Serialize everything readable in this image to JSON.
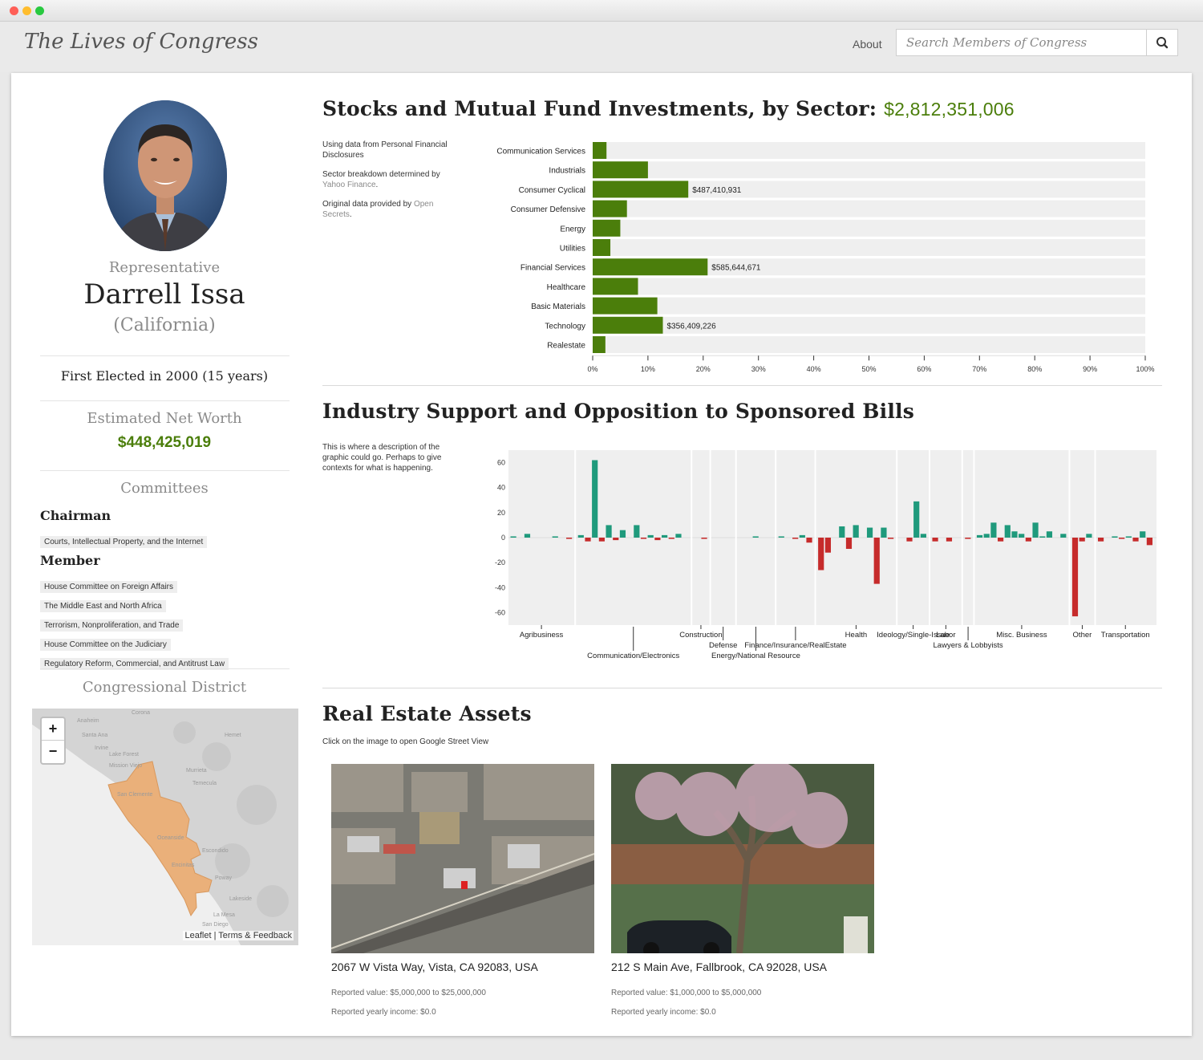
{
  "brand": "The Lives of Congress",
  "nav": {
    "about": "About"
  },
  "search": {
    "placeholder": "Search Members of Congress"
  },
  "profile": {
    "role": "Representative",
    "name": "Darrell Issa",
    "state": "(California)",
    "first_elected": "First Elected in 2000 (15 years)",
    "net_worth_label": "Estimated Net Worth",
    "net_worth": "$448,425,019"
  },
  "committees": {
    "title": "Committees",
    "chairman_label": "Chairman",
    "chairman": [
      "Courts, Intellectual Property, and the Internet"
    ],
    "member_label": "Member",
    "member": [
      "House Committee on Foreign Affairs",
      "The Middle East and North Africa",
      "Terrorism, Nonproliferation, and Trade",
      "House Committee on the Judiciary",
      "Regulatory Reform, Commercial, and Antitrust Law"
    ]
  },
  "district": {
    "title": "Congressional District",
    "zoom_in": "+",
    "zoom_out": "−",
    "attribution_leaflet": "Leaflet",
    "attribution_sep": " | ",
    "attribution_terms": "Terms & Feedback",
    "places": [
      "Corona",
      "Anaheim",
      "Santa Ana",
      "Irvine",
      "Lake Forest",
      "Mission Viejo",
      "Murrieta",
      "Temecula",
      "Hemet",
      "San Clemente",
      "Oceanside",
      "Escondido",
      "Encinitas",
      "Poway",
      "Lakeside",
      "La Mesa",
      "San Diego"
    ]
  },
  "stocks": {
    "title": "Stocks and Mutual Fund Investments, by Sector:",
    "total": "$2,812,351,006",
    "note1": "Using data from Personal Financial Disclosures",
    "note2_pre": "Sector breakdown determined by ",
    "note2_link": "Yahoo Finance",
    "note2_post": ".",
    "note3_pre": "Original data provided by ",
    "note3_link": "Open Secrets",
    "note3_post": "."
  },
  "industry": {
    "title": "Industry Support and Opposition to Sponsored Bills",
    "note": "This is where a description of the graphic could go. Perhaps to give contexts for what is happening."
  },
  "realestate": {
    "title": "Real Estate Assets",
    "note": "Click on the image to open Google Street View",
    "assets": [
      {
        "address": "2067 W Vista Way, Vista, CA 92083, USA",
        "value": "Reported value: $5,000,000 to $25,000,000",
        "income": "Reported yearly income: $0.0"
      },
      {
        "address": "212 S Main Ave, Fallbrook, CA 92028, USA",
        "value": "Reported value: $1,000,000 to $5,000,000",
        "income": "Reported yearly income: $0.0"
      }
    ]
  },
  "colors": {
    "accent": "#4b7e0b",
    "support": "#1f9a7c",
    "oppose": "#c62b2b",
    "track": "#efefef"
  },
  "chart_data": [
    {
      "type": "bar",
      "orientation": "horizontal",
      "categories": [
        "Communication Services",
        "Industrials",
        "Consumer Cyclical",
        "Consumer Defensive",
        "Energy",
        "Utilities",
        "Financial Services",
        "Healthcare",
        "Basic Materials",
        "Technology",
        "Realestate"
      ],
      "values": [
        2.5,
        10,
        17.3,
        6.2,
        5,
        3.2,
        20.8,
        8.2,
        11.7,
        12.7,
        2.3
      ],
      "data_labels": [
        "",
        "",
        "$487,410,931",
        "",
        "",
        "",
        "$585,644,671",
        "",
        "",
        "$356,409,226",
        ""
      ],
      "xlim": [
        0,
        100
      ],
      "x_ticks": [
        "0%",
        "10%",
        "20%",
        "30%",
        "40%",
        "50%",
        "60%",
        "70%",
        "80%",
        "90%",
        "100%"
      ]
    },
    {
      "type": "bar",
      "ylim": [
        -70,
        70
      ],
      "y_ticks": [
        "60",
        "40",
        "20",
        "0",
        "-20",
        "-40",
        "-60"
      ],
      "groups": [
        {
          "name": "Agribusiness",
          "bars": [
            1,
            0,
            3,
            0,
            0,
            0,
            1,
            0,
            -1
          ]
        },
        {
          "name": "Communication/Electronics",
          "bars": [
            2,
            -3,
            62,
            -3,
            10,
            -2,
            6,
            0,
            10,
            -1,
            2,
            -2,
            2,
            -1,
            3,
            0
          ]
        },
        {
          "name": "Construction",
          "bars": [
            0,
            -1
          ]
        },
        {
          "name": "Defense",
          "bars": [
            0,
            0,
            0
          ]
        },
        {
          "name": "Energy/National Resource",
          "bars": [
            0,
            0,
            1,
            0,
            0
          ]
        },
        {
          "name": "Finance/Insurance/RealEstate",
          "bars": [
            1,
            0,
            -1,
            2,
            -4
          ]
        },
        {
          "name": "Health",
          "bars": [
            -26,
            -12,
            0,
            9,
            -9,
            10,
            0,
            8,
            -37,
            8,
            -1
          ]
        },
        {
          "name": "Ideology/Single-Issue",
          "bars": [
            0,
            -3,
            29,
            3
          ]
        },
        {
          "name": "Labor",
          "bars": [
            -3,
            0,
            -3,
            0
          ]
        },
        {
          "name": "Lawyers & Lobbyists",
          "bars": [
            -1
          ]
        },
        {
          "name": "Misc. Business",
          "bars": [
            2,
            3,
            12,
            -3,
            10,
            5,
            3,
            -3,
            12,
            1,
            5,
            0,
            3
          ]
        },
        {
          "name": "Other",
          "bars": [
            -63,
            -3,
            3
          ]
        },
        {
          "name": "Transportation",
          "bars": [
            -3,
            0,
            1,
            -1,
            1,
            -3,
            5,
            -6
          ]
        }
      ]
    }
  ]
}
